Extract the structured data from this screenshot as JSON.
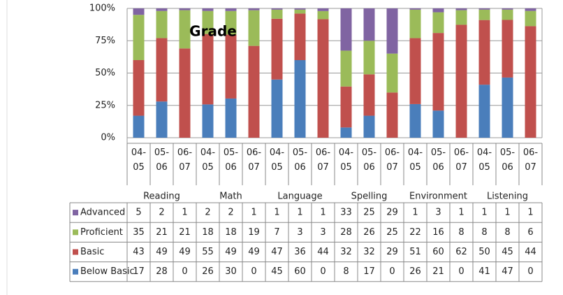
{
  "chart_data": {
    "type": "stacked100",
    "title": "Grade",
    "groups": [
      "Reading",
      "Math",
      "Language",
      "Spelling",
      "Environment",
      "Listening"
    ],
    "categories": [
      "04-05",
      "05-06",
      "06-07",
      "04-05",
      "05-06",
      "06-07",
      "04-05",
      "05-06",
      "06-07",
      "04-05",
      "05-06",
      "06-07",
      "04-05",
      "05-06",
      "06-07",
      "04-05",
      "05-06",
      "06-07"
    ],
    "series": [
      {
        "name": "Advanced",
        "color": "#8064a2",
        "values": [
          5,
          2,
          1,
          2,
          2,
          1,
          1,
          1,
          1,
          33,
          25,
          29,
          1,
          3,
          1,
          1,
          1,
          1
        ]
      },
      {
        "name": "Proficient",
        "color": "#9bbb59",
        "values": [
          35,
          21,
          21,
          18,
          18,
          19,
          7,
          3,
          3,
          28,
          26,
          25,
          22,
          16,
          8,
          8,
          8,
          6
        ]
      },
      {
        "name": "Basic",
        "color": "#c0504d",
        "values": [
          43,
          49,
          49,
          55,
          49,
          49,
          47,
          36,
          44,
          32,
          32,
          29,
          51,
          60,
          62,
          50,
          45,
          44
        ]
      },
      {
        "name": "Below Basic",
        "color": "#4a7ebb",
        "values": [
          17,
          28,
          0,
          26,
          30,
          0,
          45,
          60,
          0,
          8,
          17,
          0,
          26,
          21,
          0,
          41,
          47,
          0
        ]
      }
    ],
    "ylim": [
      0,
      100
    ],
    "yticks": [
      {
        "value": 0,
        "label": "0%"
      },
      {
        "value": 25,
        "label": "25%"
      },
      {
        "value": 50,
        "label": "50%"
      },
      {
        "value": 75,
        "label": "75%"
      },
      {
        "value": 100,
        "label": "100%"
      }
    ],
    "grid": true
  }
}
